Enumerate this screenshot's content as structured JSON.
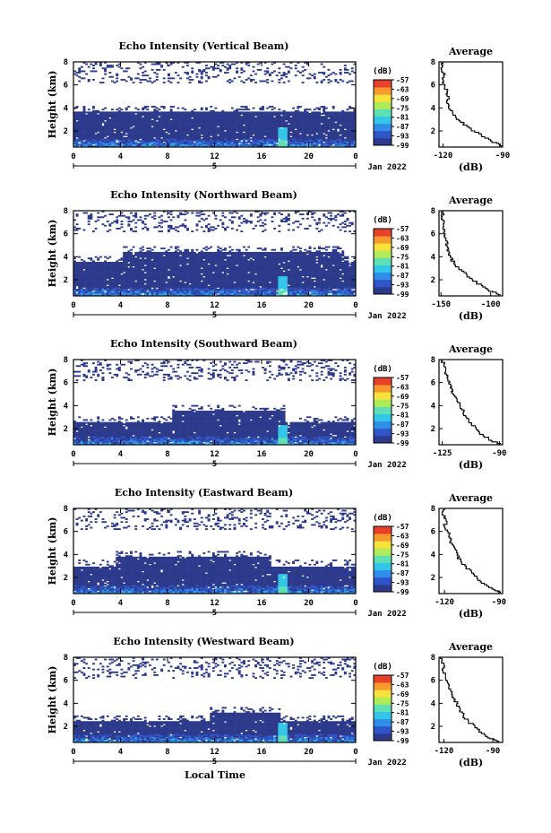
{
  "chart_data": [
    {
      "type": "heatmap",
      "title": "Echo Intensity (Vertical Beam)",
      "ylabel": "Height (km)",
      "xticks": [
        "0",
        "4",
        "8",
        "12",
        "16",
        "20",
        "0"
      ],
      "yticks": [
        "2",
        "4",
        "6",
        "8"
      ],
      "xlim": [
        0,
        24
      ],
      "ylim": [
        0.6,
        8
      ],
      "day_label": "5",
      "date_label": "Jan 2022",
      "colorbar": {
        "unit": "(dB)",
        "ticks": [
          "-57",
          "-63",
          "-69",
          "-75",
          "-81",
          "-87",
          "-93",
          "-99"
        ],
        "range": [
          -99,
          -57
        ]
      },
      "layer_top_km": 3.7,
      "average_profile": {
        "title": "Average",
        "xlabel": "(dB)",
        "xticks": [
          "-120",
          "-90"
        ],
        "yticks": [
          "2",
          "4",
          "6",
          "8"
        ],
        "xlim": [
          -122,
          -90
        ],
        "height_km": [
          0.7,
          1.0,
          1.5,
          2.0,
          2.5,
          3.0,
          3.5,
          4.0,
          4.5,
          5.0,
          5.5,
          6.0,
          6.5,
          7.0,
          7.5,
          8.0
        ],
        "db": [
          -90,
          -93,
          -99,
          -104,
          -108,
          -112,
          -115,
          -117,
          -118,
          -117,
          -118,
          -119,
          -120,
          -119,
          -121,
          -120
        ]
      }
    },
    {
      "type": "heatmap",
      "title": "Echo Intensity (Northward Beam)",
      "ylabel": "Height (km)",
      "xticks": [
        "0",
        "4",
        "8",
        "12",
        "16",
        "20",
        "0"
      ],
      "yticks": [
        "2",
        "4",
        "6",
        "8"
      ],
      "xlim": [
        0,
        24
      ],
      "ylim": [
        0.6,
        8
      ],
      "day_label": "5",
      "date_label": "Jan 2022",
      "colorbar": {
        "unit": "(dB)",
        "ticks": [
          "-57",
          "-63",
          "-69",
          "-75",
          "-81",
          "-87",
          "-93",
          "-99"
        ],
        "range": [
          -99,
          -57
        ]
      },
      "layer_top_km": 3.6,
      "average_profile": {
        "title": "Average",
        "xlabel": "(dB)",
        "xticks": [
          "-150",
          "-100"
        ],
        "yticks": [
          "2",
          "4",
          "6",
          "8"
        ],
        "xlim": [
          -152,
          -88
        ],
        "height_km": [
          0.7,
          1.0,
          1.5,
          2.0,
          2.5,
          3.0,
          3.5,
          4.0,
          4.5,
          5.0,
          5.5,
          6.0,
          6.5,
          7.0,
          7.5,
          8.0
        ],
        "db": [
          -90,
          -98,
          -108,
          -118,
          -124,
          -132,
          -137,
          -140,
          -142,
          -144,
          -145,
          -146,
          -148,
          -147,
          -149,
          -148
        ]
      }
    },
    {
      "type": "heatmap",
      "title": "Echo Intensity (Southward Beam)",
      "ylabel": "Height (km)",
      "xticks": [
        "0",
        "4",
        "8",
        "12",
        "16",
        "20",
        "0"
      ],
      "yticks": [
        "2",
        "4",
        "6",
        "8"
      ],
      "xlim": [
        0,
        24
      ],
      "ylim": [
        0.6,
        8
      ],
      "day_label": "5",
      "date_label": "Jan 2022",
      "colorbar": {
        "unit": "(dB)",
        "ticks": [
          "-57",
          "-63",
          "-69",
          "-75",
          "-81",
          "-87",
          "-93",
          "-99"
        ],
        "range": [
          -99,
          -57
        ]
      },
      "layer_top_km": 2.6,
      "average_profile": {
        "title": "Average",
        "xlabel": "(dB)",
        "xticks": [
          "-125",
          "-90"
        ],
        "yticks": [
          "2",
          "4",
          "6",
          "8"
        ],
        "xlim": [
          -127,
          -88
        ],
        "height_km": [
          0.7,
          1.0,
          1.5,
          2.0,
          2.5,
          3.0,
          3.5,
          4.0,
          4.5,
          5.0,
          5.5,
          6.0,
          6.5,
          7.0,
          7.5,
          8.0
        ],
        "db": [
          -89,
          -95,
          -100,
          -104,
          -107,
          -110,
          -112,
          -114,
          -116,
          -118,
          -119,
          -121,
          -122,
          -123,
          -124,
          -125
        ]
      }
    },
    {
      "type": "heatmap",
      "title": "Echo Intensity (Eastward Beam)",
      "ylabel": "Height (km)",
      "xticks": [
        "0",
        "4",
        "8",
        "12",
        "16",
        "20",
        "0"
      ],
      "yticks": [
        "2",
        "4",
        "6",
        "8"
      ],
      "xlim": [
        0,
        24
      ],
      "ylim": [
        0.6,
        8
      ],
      "day_label": "5",
      "date_label": "Jan 2022",
      "colorbar": {
        "unit": "(dB)",
        "ticks": [
          "-57",
          "-63",
          "-69",
          "-75",
          "-81",
          "-87",
          "-93",
          "-99"
        ],
        "range": [
          -99,
          -57
        ]
      },
      "layer_top_km": 3.0,
      "average_profile": {
        "title": "Average",
        "xlabel": "(dB)",
        "xticks": [
          "-120",
          "-90"
        ],
        "yticks": [
          "2",
          "4",
          "6",
          "8"
        ],
        "xlim": [
          -123,
          -88
        ],
        "height_km": [
          0.7,
          1.0,
          1.5,
          2.0,
          2.5,
          3.0,
          3.5,
          4.0,
          4.5,
          5.0,
          5.5,
          6.0,
          6.5,
          7.0,
          7.5,
          8.0
        ],
        "db": [
          -89,
          -93,
          -98,
          -102,
          -105,
          -108,
          -111,
          -113,
          -114,
          -116,
          -117,
          -118,
          -120,
          -119,
          -121,
          -120
        ]
      }
    },
    {
      "type": "heatmap",
      "title": "Echo Intensity (Westward Beam)",
      "ylabel": "Height (km)",
      "xlabel": "Local Time",
      "xticks": [
        "0",
        "4",
        "8",
        "12",
        "16",
        "20",
        "0"
      ],
      "yticks": [
        "2",
        "4",
        "6",
        "8"
      ],
      "xlim": [
        0,
        24
      ],
      "ylim": [
        0.6,
        8
      ],
      "day_label": "5",
      "date_label": "Jan 2022",
      "colorbar": {
        "unit": "(dB)",
        "ticks": [
          "-57",
          "-63",
          "-69",
          "-75",
          "-81",
          "-87",
          "-93",
          "-99"
        ],
        "range": [
          -99,
          -57
        ]
      },
      "layer_top_km": 2.4,
      "average_profile": {
        "title": "Average",
        "xlabel": "(dB)",
        "xticks": [
          "-120",
          "-90"
        ],
        "yticks": [
          "2",
          "4",
          "6",
          "8"
        ],
        "xlim": [
          -123,
          -84
        ],
        "height_km": [
          0.7,
          1.0,
          1.5,
          2.0,
          2.5,
          3.0,
          3.5,
          4.0,
          4.5,
          5.0,
          5.5,
          6.0,
          6.5,
          7.0,
          7.5,
          8.0
        ],
        "db": [
          -86,
          -92,
          -97,
          -101,
          -105,
          -108,
          -110,
          -112,
          -114,
          -115,
          -117,
          -118,
          -119,
          -121,
          -120,
          -122
        ]
      }
    }
  ]
}
